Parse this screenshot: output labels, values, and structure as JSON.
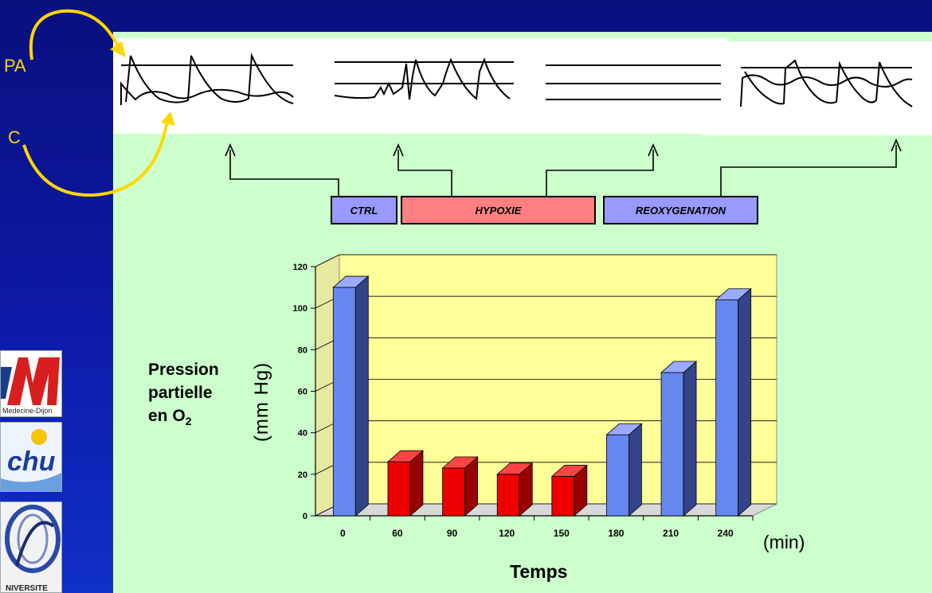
{
  "labels": {
    "pa": "PA",
    "c": "C"
  },
  "phases": [
    {
      "label": "CTRL",
      "color": "#9999ff"
    },
    {
      "label": "HYPOXIE",
      "color": "#ff8080"
    },
    {
      "label": "REOXYGENATION",
      "color": "#9999ff"
    }
  ],
  "logos": {
    "l1_text": "Medecine-Dijon",
    "l2_text": "chu",
    "l3_text": "NIVERSITE"
  },
  "colors": {
    "background": "#0d1aa8",
    "panel": "#ccffcc",
    "plot_wall": "#ffff99",
    "normoxia_bar": "#6688ee",
    "hypoxia_bar": "#ee0000",
    "arrow": "#ffd700"
  },
  "chart_data": {
    "type": "bar",
    "categories": [
      "0",
      "60",
      "90",
      "120",
      "150",
      "180",
      "210",
      "240"
    ],
    "values": [
      110,
      26,
      23,
      20,
      19,
      39,
      69,
      104
    ],
    "bar_kind": [
      "normoxia",
      "hypoxia",
      "hypoxia",
      "hypoxia",
      "hypoxia",
      "normoxia",
      "normoxia",
      "normoxia"
    ],
    "ylim": [
      0,
      120
    ],
    "yticks": [
      "0",
      "20",
      "40",
      "60",
      "80",
      "100",
      "120"
    ],
    "ylabel_lines": [
      "Pression",
      "partielle",
      "en O"
    ],
    "ylabel_subscript": "2",
    "yunit": "(mm Hg)",
    "xlabel": "Temps",
    "xunit": "(min)",
    "style": "3d",
    "grid": true
  }
}
